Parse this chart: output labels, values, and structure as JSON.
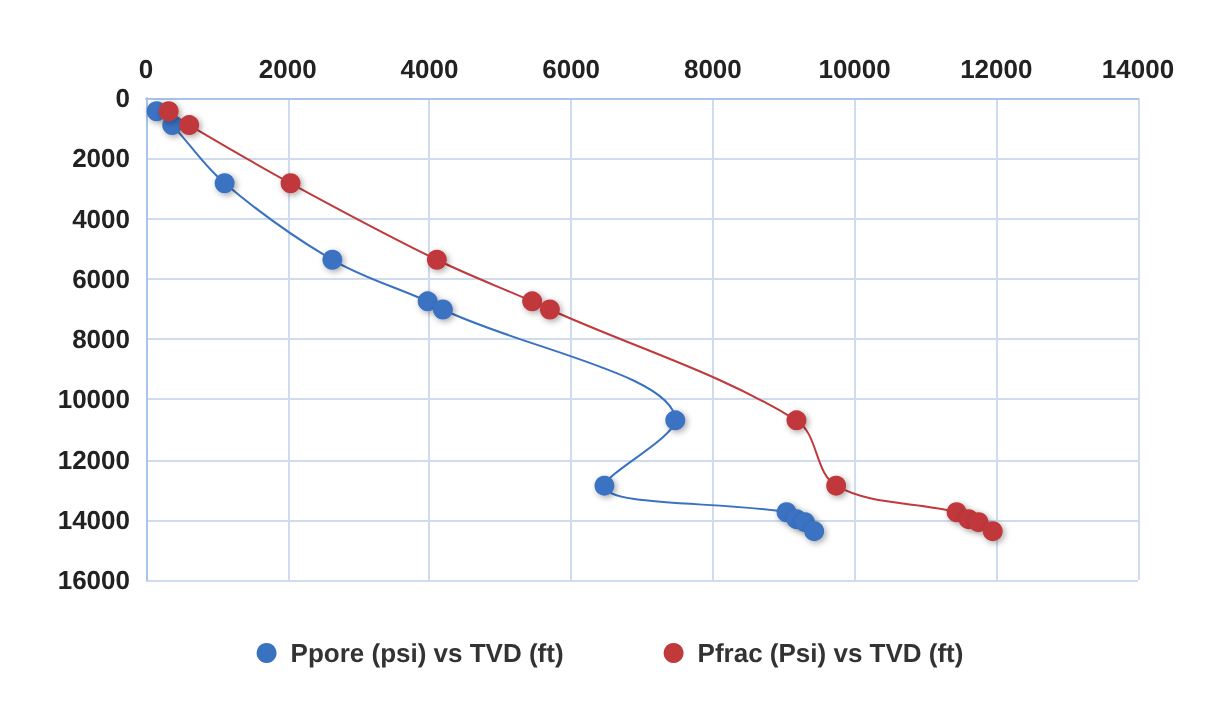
{
  "chart_data": {
    "type": "line",
    "xlim": [
      0,
      14000
    ],
    "xticks": [
      0,
      2000,
      4000,
      6000,
      8000,
      10000,
      12000,
      14000
    ],
    "ylim": [
      16000,
      0
    ],
    "yticks": [
      0,
      2000,
      4000,
      6000,
      8000,
      10000,
      12000,
      14000,
      16000
    ],
    "grid": true,
    "legend": "bottom",
    "marker": "circle",
    "line_style": "solid",
    "series": [
      {
        "name": "Ppore (psi) vs TVD (ft)",
        "color": "#3a72c2",
        "x": [
          150,
          370,
          1110,
          2630,
          3975,
          4190,
          7470,
          6470,
          9040,
          9180,
          9300,
          9430
        ],
        "values": [
          440,
          900,
          2830,
          5370,
          6750,
          7020,
          10700,
          12870,
          13750,
          13980,
          14080,
          14380
        ]
      },
      {
        "name": "Pfrac (Psi) vs TVD (ft)",
        "color": "#c0393b",
        "x": [
          320,
          610,
          2040,
          4105,
          5450,
          5700,
          9180,
          9740,
          11440,
          11610,
          11750,
          11950
        ],
        "values": [
          440,
          900,
          2830,
          5370,
          6750,
          7020,
          10700,
          12870,
          13750,
          13980,
          14080,
          14380
        ]
      }
    ]
  }
}
